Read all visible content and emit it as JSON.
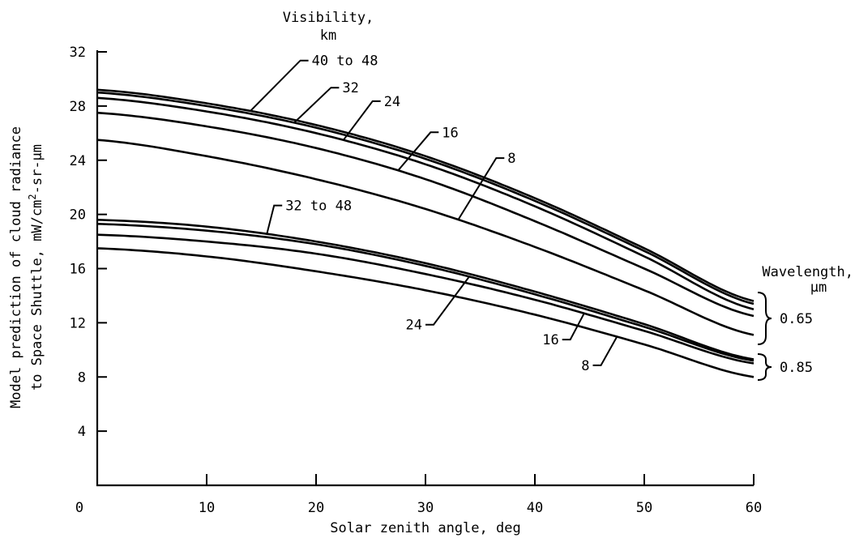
{
  "chart_data": {
    "type": "line",
    "title": "",
    "xlabel": "Solar zenith angle, deg",
    "ylabel_line1": "Model prediction of cloud radiance",
    "ylabel_line2_prefix": "to Space Shuttle, mW/cm",
    "ylabel_line2_sup": "2",
    "ylabel_line2_suffix": "-sr-µm",
    "xlim": [
      0,
      60
    ],
    "ylim": [
      0,
      32
    ],
    "x_ticks": [
      0,
      10,
      20,
      30,
      40,
      50,
      60
    ],
    "x_tick_labels": [
      "0",
      "10",
      "20",
      "30",
      "40",
      "50",
      "60"
    ],
    "y_ticks": [
      4,
      8,
      12,
      16,
      20,
      24,
      28,
      32
    ],
    "y_tick_labels": [
      "4",
      "8",
      "12",
      "16",
      "20",
      "24",
      "28",
      "32"
    ],
    "grid": false,
    "legend_title_line1": "Visibility,",
    "legend_title_line2": "km",
    "wavelength_title_line1": "Wavelength,",
    "wavelength_title_line2": "µm",
    "wavelength_groups": [
      {
        "label": "0.65",
        "y_range": [
          11.0,
          14.2
        ]
      },
      {
        "label": "0.85",
        "y_range": [
          8.0,
          9.5
        ]
      }
    ],
    "x": [
      0,
      10,
      20,
      30,
      40,
      50,
      60
    ],
    "series": [
      {
        "wavelength": "0.65",
        "values": [
          29.2,
          28.2,
          26.6,
          24.3,
          21.2,
          17.5,
          13.6
        ]
      },
      {
        "wavelength": "0.65",
        "values": [
          29.0,
          28.0,
          26.4,
          24.1,
          21.0,
          17.3,
          13.4
        ]
      },
      {
        "wavelength": "0.65",
        "values": [
          28.6,
          27.6,
          26.0,
          23.7,
          20.6,
          16.9,
          13.0
        ]
      },
      {
        "wavelength": "0.65",
        "values": [
          27.5,
          26.5,
          24.9,
          22.6,
          19.5,
          16.0,
          12.5
        ]
      },
      {
        "wavelength": "0.65",
        "values": [
          25.5,
          24.3,
          22.6,
          20.4,
          17.6,
          14.4,
          11.1
        ]
      },
      {
        "wavelength": "0.85",
        "values": [
          19.6,
          19.1,
          18.0,
          16.4,
          14.3,
          11.9,
          9.3
        ]
      },
      {
        "wavelength": "0.85",
        "values": [
          19.3,
          18.8,
          17.8,
          16.2,
          14.1,
          11.7,
          9.2
        ]
      },
      {
        "wavelength": "0.85",
        "values": [
          18.5,
          18.0,
          17.1,
          15.6,
          13.7,
          11.4,
          9.0
        ]
      },
      {
        "wavelength": "0.85",
        "values": [
          17.5,
          16.9,
          15.8,
          14.4,
          12.6,
          10.4,
          8.0
        ]
      }
    ],
    "annotations": [
      {
        "text": "40 to 48",
        "series_index": 0,
        "x_at": 14,
        "tx": 19.6,
        "ty": 31.0,
        "anchor": "start"
      },
      {
        "text": "32",
        "series_index": 1,
        "x_at": 18,
        "tx": 22.4,
        "ty": 29.0,
        "anchor": "start"
      },
      {
        "text": "24",
        "series_index": 2,
        "x_at": 22.5,
        "tx": 26.2,
        "ty": 28.0,
        "anchor": "start"
      },
      {
        "text": "16",
        "series_index": 3,
        "x_at": 27.5,
        "tx": 31.5,
        "ty": 25.7,
        "anchor": "start"
      },
      {
        "text": "8",
        "series_index": 4,
        "x_at": 33,
        "tx": 37.5,
        "ty": 23.8,
        "anchor": "start"
      },
      {
        "text": "32 to 48",
        "series_index": 5,
        "x_at": 15.5,
        "tx": 17.2,
        "ty": 20.3,
        "anchor": "start"
      },
      {
        "text": "24",
        "series_index": 6,
        "x_at": 34,
        "tx": 29.7,
        "ty": 11.5,
        "anchor": "end"
      },
      {
        "text": "16",
        "series_index": 7,
        "x_at": 44.5,
        "tx": 42.2,
        "ty": 10.4,
        "anchor": "end"
      },
      {
        "text": "8",
        "series_index": 8,
        "x_at": 47.5,
        "tx": 45.0,
        "ty": 8.5,
        "anchor": "end"
      }
    ]
  }
}
